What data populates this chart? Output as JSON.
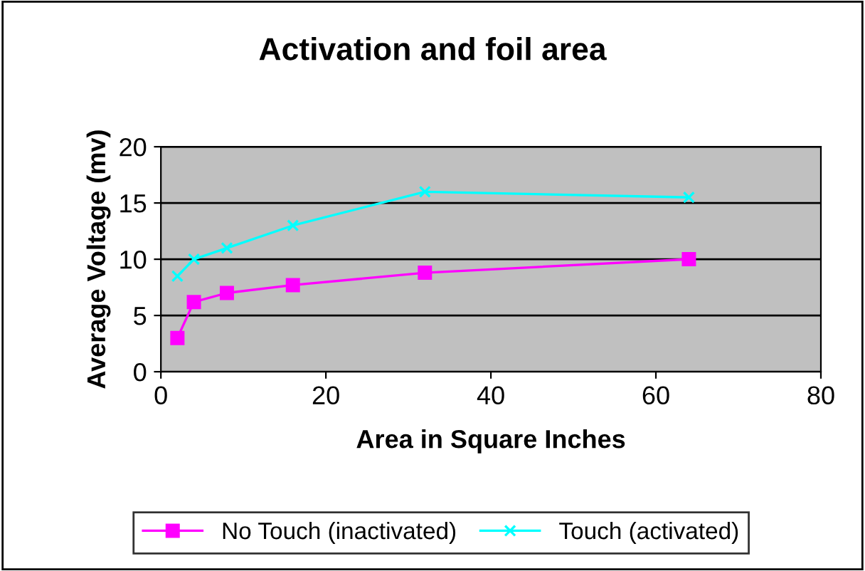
{
  "chart_data": {
    "type": "line",
    "title": "Activation and foil area",
    "xlabel": "Area in Square Inches",
    "ylabel": "Average Voltage (mv)",
    "x": [
      2,
      4,
      8,
      16,
      32,
      64
    ],
    "series": [
      {
        "name": "No Touch (inactivated)",
        "color": "#ff00ff",
        "marker": "square",
        "values": [
          3,
          6.2,
          7,
          7.7,
          8.8,
          10
        ]
      },
      {
        "name": "Touch (activated)",
        "color": "#00ffff",
        "marker": "cross",
        "values": [
          8.5,
          10,
          11,
          13,
          16,
          15.5
        ]
      }
    ],
    "xlim": [
      0,
      80
    ],
    "xticks": [
      0,
      20,
      40,
      60,
      80
    ],
    "ylim": [
      0,
      20
    ],
    "yticks": [
      0,
      5,
      10,
      15,
      20
    ],
    "grid": "y",
    "legend": "bottom",
    "line_style": "solid"
  }
}
